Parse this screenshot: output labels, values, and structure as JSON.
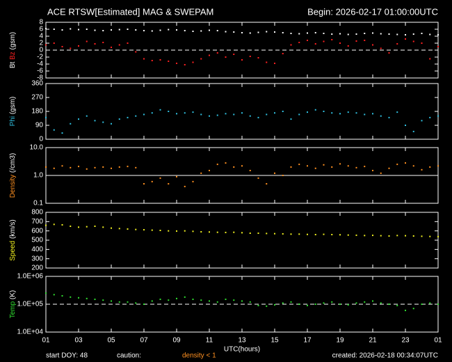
{
  "header": {
    "title": "ACE RTSW[Estimated] MAG & SWEPAM",
    "begin": "Begin: 2026-02-17 01:00:00UTC"
  },
  "x_axis": {
    "xlim": [
      0,
      24
    ],
    "label": "UTC(hours)",
    "xticks": [
      {
        "value": 0,
        "label": "01"
      },
      {
        "value": 2,
        "label": "03"
      },
      {
        "value": 4,
        "label": "05"
      },
      {
        "value": 6,
        "label": "07"
      },
      {
        "value": 8,
        "label": "09"
      },
      {
        "value": 10,
        "label": "11"
      },
      {
        "value": 12,
        "label": "13"
      },
      {
        "value": 14,
        "label": "15"
      },
      {
        "value": 16,
        "label": "17"
      },
      {
        "value": 18,
        "label": "19"
      },
      {
        "value": 20,
        "label": "21"
      },
      {
        "value": 22,
        "label": "23"
      },
      {
        "value": 24,
        "label": "01"
      }
    ]
  },
  "footer": {
    "start": "start DOY:  48",
    "caution": "caution:",
    "caution_note": "density < 1",
    "created": "created: 2026-02-18 00:34:07UTC"
  },
  "chart_data": [
    {
      "type": "scatter",
      "unit": "(gsm)",
      "ylim": [
        -8,
        8
      ],
      "yticks": [
        -8,
        -6,
        -4,
        -2,
        0,
        2,
        4,
        6,
        8
      ],
      "hline": 0,
      "hline_style": "dashed",
      "x": [
        0,
        0.5,
        1,
        1.5,
        2,
        2.5,
        3,
        3.5,
        4,
        4.5,
        5,
        5.5,
        6,
        6.5,
        7,
        7.5,
        8,
        8.5,
        9,
        9.5,
        10,
        10.5,
        11,
        11.5,
        12,
        12.5,
        13,
        13.5,
        14,
        14.5,
        15,
        15.5,
        16,
        16.5,
        17,
        17.5,
        18,
        18.5,
        19,
        19.5,
        20,
        20.5,
        21,
        21.5,
        22,
        22.5,
        23,
        23.5,
        24
      ],
      "series": [
        {
          "name": "Bt",
          "color": "#ffffff",
          "values": [
            6.2,
            6.0,
            5.8,
            6.1,
            5.9,
            6.0,
            5.7,
            5.6,
            5.8,
            5.9,
            6.0,
            5.8,
            5.6,
            5.5,
            5.7,
            5.9,
            5.8,
            5.6,
            5.4,
            5.5,
            5.7,
            5.6,
            5.3,
            5.2,
            5.0,
            4.9,
            5.1,
            5.3,
            5.2,
            5.0,
            4.8,
            4.7,
            4.9,
            5.0,
            4.8,
            4.6,
            4.7,
            4.5,
            4.6,
            4.8,
            4.9,
            4.7,
            4.6,
            4.5,
            4.4,
            4.6,
            4.8,
            4.5,
            4.4
          ]
        },
        {
          "name": "Bz",
          "color": "#ff2020",
          "values": [
            1.5,
            2.0,
            1.0,
            0.5,
            1.2,
            2.5,
            1.8,
            2.2,
            0.8,
            1.5,
            2.0,
            -0.5,
            -2.5,
            -3.0,
            -2.8,
            -3.2,
            -3.8,
            -4.2,
            -3.5,
            -2.5,
            -1.5,
            -0.8,
            -2.0,
            -1.2,
            -2.8,
            -1.8,
            -2.2,
            -3.5,
            -3.8,
            -1.0,
            1.5,
            2.2,
            2.8,
            1.8,
            2.5,
            3.0,
            2.0,
            1.2,
            2.6,
            2.8,
            1.5,
            0.5,
            -0.8,
            1.8,
            3.2,
            2.5,
            2.0,
            -2.5,
            1.0
          ]
        }
      ]
    },
    {
      "type": "scatter",
      "unit": "(gsm)",
      "ylim": [
        0,
        360
      ],
      "yticks": [
        0,
        90,
        180,
        270,
        360
      ],
      "x": [
        0,
        0.5,
        1,
        1.5,
        2,
        2.5,
        3,
        3.5,
        4,
        4.5,
        5,
        5.5,
        6,
        6.5,
        7,
        7.5,
        8,
        8.5,
        9,
        9.5,
        10,
        10.5,
        11,
        11.5,
        12,
        12.5,
        13,
        13.5,
        14,
        14.5,
        15,
        15.5,
        16,
        16.5,
        17,
        17.5,
        18,
        18.5,
        19,
        19.5,
        20,
        20.5,
        21,
        21.5,
        22,
        22.5,
        23,
        23.5,
        24
      ],
      "series": [
        {
          "name": "Phi",
          "color": "#30c0e0",
          "values": [
            140,
            60,
            40,
            100,
            130,
            150,
            120,
            110,
            100,
            130,
            140,
            150,
            160,
            170,
            190,
            180,
            165,
            170,
            175,
            160,
            150,
            155,
            165,
            160,
            170,
            150,
            140,
            160,
            170,
            180,
            130,
            160,
            175,
            190,
            180,
            170,
            165,
            175,
            170,
            160,
            165,
            150,
            140,
            175,
            90,
            50,
            120,
            140,
            150
          ]
        }
      ]
    },
    {
      "type": "scatter",
      "unit": "(/cm3)",
      "log": true,
      "ylim": [
        0.1,
        10
      ],
      "yticks": [
        0.1,
        {
          "value": 1,
          "label": "1.0"
        },
        {
          "value": 10,
          "label": "10.0"
        }
      ],
      "hline": 1,
      "hline_style": "solid",
      "x": [
        0,
        0.5,
        1,
        1.5,
        2,
        2.5,
        3,
        3.5,
        4,
        4.5,
        5,
        5.5,
        6,
        6.5,
        7,
        7.5,
        8,
        8.5,
        9,
        9.5,
        10,
        10.5,
        11,
        11.5,
        12,
        12.5,
        13,
        13.5,
        14,
        14.5,
        15,
        15.5,
        16,
        16.5,
        17,
        17.5,
        18,
        18.5,
        19,
        19.5,
        20,
        20.5,
        21,
        21.5,
        22,
        22.5,
        23,
        23.5,
        24
      ],
      "series": [
        {
          "name": "Density",
          "color": "#ff9020",
          "values": [
            2.0,
            1.8,
            2.2,
            1.9,
            2.1,
            1.7,
            1.9,
            2.0,
            1.8,
            2.0,
            2.1,
            1.9,
            0.5,
            0.6,
            0.8,
            0.5,
            0.9,
            0.4,
            0.6,
            1.2,
            1.5,
            2.5,
            2.8,
            2.0,
            2.2,
            1.5,
            0.8,
            0.5,
            1.2,
            1.0,
            2.0,
            2.5,
            2.2,
            1.8,
            2.4,
            2.0,
            2.6,
            2.2,
            1.9,
            2.1,
            1.5,
            1.2,
            1.8,
            2.5,
            2.8,
            2.2,
            1.6,
            2.0,
            2.2
          ]
        }
      ]
    },
    {
      "type": "scatter",
      "unit": "(km/s)",
      "ylim": [
        200,
        800
      ],
      "yticks": [
        200,
        300,
        400,
        500,
        600,
        700,
        800
      ],
      "x": [
        0,
        0.5,
        1,
        1.5,
        2,
        2.5,
        3,
        3.5,
        4,
        4.5,
        5,
        5.5,
        6,
        6.5,
        7,
        7.5,
        8,
        8.5,
        9,
        9.5,
        10,
        10.5,
        11,
        11.5,
        12,
        12.5,
        13,
        13.5,
        14,
        14.5,
        15,
        15.5,
        16,
        16.5,
        17,
        17.5,
        18,
        18.5,
        19,
        19.5,
        20,
        20.5,
        21,
        21.5,
        22,
        22.5,
        23,
        23.5,
        24
      ],
      "series": [
        {
          "name": "Speed",
          "color": "#f0f020",
          "values": [
            660,
            670,
            665,
            650,
            640,
            645,
            650,
            640,
            630,
            625,
            620,
            615,
            612,
            608,
            605,
            600,
            598,
            600,
            595,
            590,
            588,
            585,
            583,
            585,
            580,
            575,
            575,
            572,
            570,
            568,
            565,
            565,
            562,
            560,
            563,
            560,
            558,
            555,
            553,
            550,
            552,
            548,
            545,
            550,
            548,
            545,
            542,
            540,
            538
          ]
        }
      ]
    },
    {
      "type": "scatter",
      "unit": "(K)",
      "log": true,
      "ylim": [
        10000,
        1000000
      ],
      "yticks": [
        {
          "value": 10000,
          "label": "1.0E+04"
        },
        {
          "value": 100000,
          "label": "1.0E+05"
        },
        {
          "value": 1000000,
          "label": "1.0E+06"
        }
      ],
      "hline": 100000,
      "hline_style": "dashed",
      "x": [
        0,
        0.5,
        1,
        1.5,
        2,
        2.5,
        3,
        3.5,
        4,
        4.5,
        5,
        5.5,
        6,
        6.5,
        7,
        7.5,
        8,
        8.5,
        9,
        9.5,
        10,
        10.5,
        11,
        11.5,
        12,
        12.5,
        13,
        13.5,
        14,
        14.5,
        15,
        15.5,
        16,
        16.5,
        17,
        17.5,
        18,
        18.5,
        19,
        19.5,
        20,
        20.5,
        21,
        21.5,
        22,
        22.5,
        23,
        23.5,
        24
      ],
      "series": [
        {
          "name": "Temp",
          "color": "#30e030",
          "values": [
            250000,
            220000,
            200000,
            180000,
            170000,
            160000,
            150000,
            140000,
            130000,
            120000,
            120000,
            110000,
            100000,
            130000,
            150000,
            140000,
            160000,
            180000,
            150000,
            140000,
            130000,
            120000,
            150000,
            140000,
            130000,
            120000,
            90000,
            85000,
            95000,
            110000,
            120000,
            100000,
            90000,
            100000,
            110000,
            120000,
            100000,
            95000,
            110000,
            120000,
            130000,
            110000,
            100000,
            90000,
            60000,
            70000,
            100000,
            110000,
            100000
          ]
        }
      ]
    }
  ]
}
